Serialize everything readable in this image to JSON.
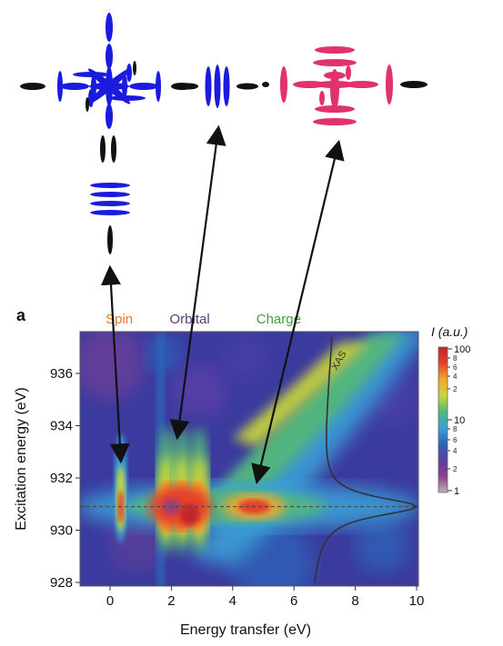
{
  "panel_letter": "a",
  "chart_data": {
    "type": "heatmap",
    "title": "",
    "xlabel": "Energy transfer (eV)",
    "ylabel": "Excitation energy (eV)",
    "xlim": [
      -1,
      10
    ],
    "ylim": [
      928,
      937.5
    ],
    "x_ticks": [
      0,
      2,
      4,
      6,
      8,
      10
    ],
    "y_ticks": [
      928,
      930,
      932,
      934,
      936
    ],
    "top_labels": [
      {
        "text": "Spin",
        "color": "#e07a30",
        "x": 0.3
      },
      {
        "text": "Orbital",
        "color": "#5a3a7a",
        "x": 2.6
      },
      {
        "text": "Charge",
        "color": "#3f9e3a",
        "x": 5.5
      }
    ],
    "features": [
      {
        "name": "Spin",
        "x": 0.35,
        "y": 930.9
      },
      {
        "name": "Orbital",
        "x": 2.2,
        "y": 930.9
      },
      {
        "name": "Charge",
        "x": 4.8,
        "y": 930.9
      }
    ],
    "reference_line": {
      "y": 930.9,
      "style": "dashed"
    },
    "xas_curve_label": "XAS",
    "colorbar": {
      "title": "I (a.u.)",
      "major_ticks": [
        "100",
        "10",
        "1"
      ],
      "minor_ticks": [
        "8",
        "6",
        "4",
        "2",
        "8",
        "6",
        "4",
        "2"
      ],
      "scale": "log",
      "colors": [
        "#b9b2b6",
        "#8c3f8a",
        "#5a3fa2",
        "#2f62b8",
        "#3aa0d6",
        "#52b77b",
        "#c9d73a",
        "#f2a82a",
        "#e5402b",
        "#c3262b"
      ]
    }
  },
  "diagrams": {
    "spin_color": "#1b1be0",
    "orbital_color": "#1b1be0",
    "charge_color": "#e0336b",
    "neutral_color": "#111111"
  }
}
